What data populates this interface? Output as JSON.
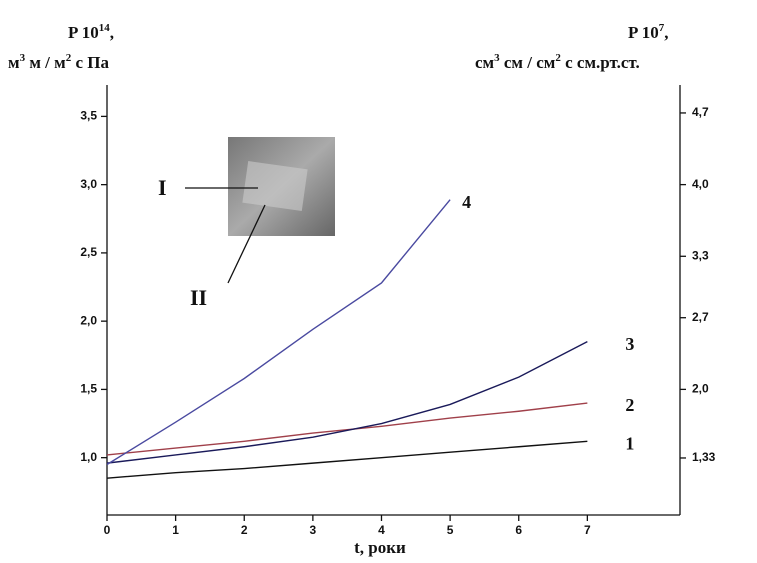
{
  "chart_data": {
    "type": "line",
    "y_label": {
      "line1": [
        "P 10",
        "14",
        ","
      ],
      "line2": [
        "м",
        "3",
        " м / м",
        "2",
        " с Па"
      ]
    },
    "y2_label": {
      "line1": [
        "P 10",
        "7",
        ","
      ],
      "line2": [
        "см",
        "3",
        " см / см",
        "2",
        " с  см.рт.ст."
      ]
    },
    "x_label": "t,  роки",
    "annotations": [
      "I",
      "II"
    ],
    "x": [
      0,
      1,
      2,
      3,
      4,
      5,
      6,
      7
    ],
    "xlim": [
      0,
      8.35
    ],
    "xticks": [
      0,
      1,
      2,
      3,
      4,
      5,
      6,
      7
    ],
    "ylim": [
      0.58,
      3.73
    ],
    "yticks": [
      {
        "value": 1.0,
        "label": "1,0"
      },
      {
        "value": 1.5,
        "label": "1,5"
      },
      {
        "value": 2.0,
        "label": "2,0"
      },
      {
        "value": 2.5,
        "label": "2,5"
      },
      {
        "value": 3.0,
        "label": "3,0"
      },
      {
        "value": 3.5,
        "label": "3,5"
      }
    ],
    "y2lim": [
      0.773,
      4.973
    ],
    "y2ticks": [
      {
        "value": 1.33,
        "label": "1,33"
      },
      {
        "value": 2.0,
        "label": "2,0"
      },
      {
        "value": 2.7,
        "label": "2,7"
      },
      {
        "value": 3.3,
        "label": "3,3"
      },
      {
        "value": 4.0,
        "label": "4,0"
      },
      {
        "value": 4.7,
        "label": "4,7"
      }
    ],
    "series": [
      {
        "name": "1",
        "color": "#111111",
        "values": [
          0.85,
          0.89,
          0.92,
          0.96,
          1.0,
          1.04,
          1.08,
          1.12
        ]
      },
      {
        "name": "2",
        "color": "#a0404a",
        "values": [
          1.02,
          1.07,
          1.12,
          1.18,
          1.23,
          1.29,
          1.34,
          1.4
        ]
      },
      {
        "name": "3",
        "color": "#1a1a5a",
        "values": [
          0.96,
          1.02,
          1.08,
          1.15,
          1.25,
          1.39,
          1.59,
          1.85
        ]
      },
      {
        "name": "4",
        "color": "#4a4aa0",
        "values": [
          0.95,
          1.26,
          1.58,
          1.94,
          2.28,
          2.89,
          null,
          null
        ]
      }
    ]
  }
}
